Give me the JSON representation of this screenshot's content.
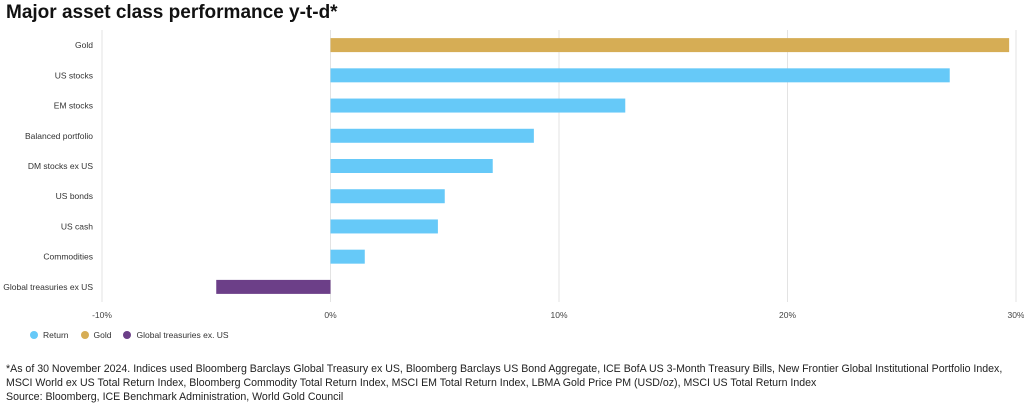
{
  "title": "Major asset class performance y-t-d*",
  "chart_data": {
    "type": "bar",
    "orientation": "horizontal",
    "title": "Major asset class performance y-t-d*",
    "xlim": [
      -10,
      30
    ],
    "x_ticks": [
      "-10%",
      "0%",
      "10%",
      "20%",
      "30%"
    ],
    "x_tick_values": [
      -10,
      0,
      10,
      20,
      30
    ],
    "grid": true,
    "categories": [
      "Gold",
      "US stocks",
      "EM stocks",
      "Balanced portfolio",
      "DM stocks ex US",
      "US bonds",
      "US cash",
      "Commodities",
      "Global treasuries ex US"
    ],
    "values": [
      29.7,
      27.1,
      12.9,
      8.9,
      7.1,
      5.0,
      4.7,
      1.5,
      -5.0
    ],
    "series_group": [
      "Gold",
      "Return",
      "Return",
      "Return",
      "Return",
      "Return",
      "Return",
      "Return",
      "Global treasuries ex. US"
    ],
    "legend_position": "bottom-left"
  },
  "legend": [
    {
      "label": "Return",
      "color": "#66c9f8"
    },
    {
      "label": "Gold",
      "color": "#d6ad55"
    },
    {
      "label": "Global treasuries ex. US",
      "color": "#6c3f88"
    }
  ],
  "footnote": {
    "note": "*As of 30 November 2024. Indices used Bloomberg Barclays Global Treasury ex US, Bloomberg Barclays US Bond Aggregate, ICE BofA US 3-Month Treasury Bills, New Frontier Global Institutional Portfolio Index, MSCI World ex US Total Return Index, Bloomberg Commodity Total Return Index, MSCI EM Total Return Index, LBMA Gold Price PM (USD/oz), MSCI US Total Return Index",
    "source": "Source: Bloomberg, ICE Benchmark Administration, World Gold Council"
  }
}
